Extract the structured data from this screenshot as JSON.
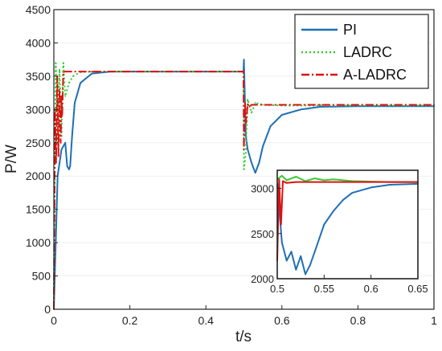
{
  "chart_data": [
    {
      "type": "line",
      "xlabel": "t/s",
      "ylabel": "P/W",
      "xlim": [
        0,
        1
      ],
      "ylim": [
        0,
        4500
      ],
      "x_ticks": [
        "0",
        "0.2",
        "0.4",
        "0.6",
        "0.8",
        "1"
      ],
      "y_ticks": [
        "0",
        "500",
        "1000",
        "1500",
        "2000",
        "2500",
        "3000",
        "3500",
        "4000",
        "4500"
      ],
      "legend_position": "top-right",
      "series": [
        {
          "name": "PI",
          "color": "#1f6fb4",
          "style": "solid",
          "x": [
            0,
            0.01,
            0.02,
            0.03,
            0.035,
            0.04,
            0.043,
            0.048,
            0.055,
            0.07,
            0.1,
            0.15,
            0.2,
            0.3,
            0.4,
            0.499,
            0.5,
            0.505,
            0.51,
            0.52,
            0.53,
            0.54,
            0.55,
            0.57,
            0.6,
            0.65,
            0.7,
            0.8,
            0.9,
            1.0
          ],
          "y": [
            0,
            2000,
            2400,
            2500,
            2150,
            2100,
            2150,
            2600,
            3100,
            3400,
            3540,
            3570,
            3570,
            3570,
            3570,
            3570,
            3750,
            2600,
            2400,
            2200,
            2050,
            2200,
            2450,
            2750,
            2920,
            3000,
            3040,
            3050,
            3050,
            3050
          ]
        },
        {
          "name": "LADRC",
          "color": "#33cc33",
          "style": "dotted",
          "x": [
            0,
            0.005,
            0.01,
            0.015,
            0.02,
            0.025,
            0.03,
            0.04,
            0.05,
            0.07,
            0.1,
            0.2,
            0.3,
            0.4,
            0.499,
            0.5,
            0.505,
            0.51,
            0.52,
            0.53,
            0.55,
            0.6,
            0.65,
            0.7,
            0.8,
            0.9,
            1.0
          ],
          "y": [
            0,
            3700,
            2500,
            3600,
            2600,
            3700,
            3200,
            3400,
            3500,
            3560,
            3570,
            3570,
            3570,
            3570,
            3570,
            2100,
            2350,
            3150,
            2950,
            3100,
            3070,
            3060,
            3060,
            3060,
            3060,
            3060,
            3060
          ]
        },
        {
          "name": "A-LADRC",
          "color": "#dd1111",
          "style": "dashdot",
          "x": [
            0,
            0.003,
            0.006,
            0.009,
            0.012,
            0.015,
            0.018,
            0.02,
            0.022,
            0.025,
            0.03,
            0.1,
            0.2,
            0.3,
            0.4,
            0.499,
            0.5,
            0.503,
            0.506,
            0.51,
            0.515,
            0.52,
            0.6,
            0.7,
            0.8,
            0.9,
            1.0
          ],
          "y": [
            0,
            3000,
            2200,
            3500,
            2300,
            3300,
            2500,
            3200,
            2900,
            3560,
            3570,
            3570,
            3570,
            3570,
            3570,
            3570,
            2400,
            3100,
            2800,
            3080,
            3040,
            3070,
            3070,
            3070,
            3070,
            3070,
            3070
          ]
        }
      ]
    },
    {
      "type": "line",
      "xlim": [
        0.5,
        0.65
      ],
      "ylim": [
        2000,
        3200
      ],
      "x_ticks": [
        "0.5",
        "0.55",
        "0.6",
        "0.65"
      ],
      "y_ticks": [
        "2000",
        "2500",
        "3000"
      ],
      "series": [
        {
          "name": "PI",
          "color": "#1f6fb4",
          "x": [
            0.5,
            0.505,
            0.51,
            0.515,
            0.52,
            0.525,
            0.53,
            0.535,
            0.54,
            0.545,
            0.55,
            0.56,
            0.57,
            0.58,
            0.6,
            0.62,
            0.65
          ],
          "y": [
            3050,
            2400,
            2200,
            2300,
            2100,
            2250,
            2050,
            2150,
            2300,
            2450,
            2600,
            2750,
            2870,
            2950,
            3010,
            3040,
            3050
          ]
        },
        {
          "name": "LADRC",
          "color": "#33cc33",
          "x": [
            0.5,
            0.505,
            0.51,
            0.52,
            0.53,
            0.54,
            0.55,
            0.56,
            0.58,
            0.6,
            0.62,
            0.65
          ],
          "y": [
            3100,
            3140,
            3090,
            3130,
            3080,
            3110,
            3090,
            3100,
            3080,
            3075,
            3070,
            3070
          ]
        },
        {
          "name": "A-LADRC",
          "color": "#dd1111",
          "x": [
            0.5,
            0.502,
            0.504,
            0.506,
            0.51,
            0.52,
            0.55,
            0.6,
            0.65
          ],
          "y": [
            2200,
            3100,
            2600,
            3080,
            3060,
            3070,
            3070,
            3070,
            3070
          ]
        }
      ]
    }
  ]
}
